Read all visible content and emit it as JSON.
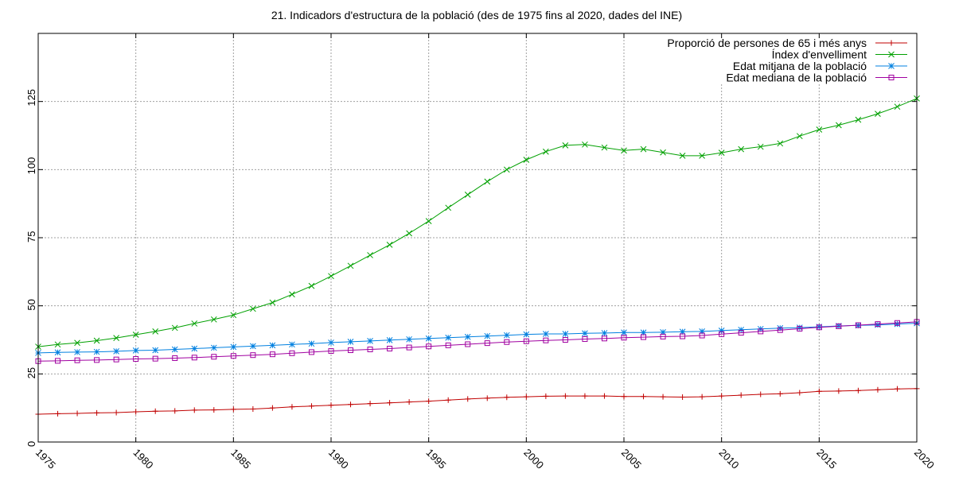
{
  "chart_data": {
    "type": "line",
    "title": "21. Indicadors d'estructura de la població (des de 1975 fins al 2020, dades del INE)",
    "xlabel": "",
    "ylabel": "",
    "xlim": [
      1975,
      2020
    ],
    "ylim": [
      0,
      150
    ],
    "x_ticks": [
      1975,
      1980,
      1985,
      1990,
      1995,
      2000,
      2005,
      2010,
      2015,
      2020
    ],
    "y_ticks": [
      0,
      25,
      50,
      75,
      100,
      125
    ],
    "grid": true,
    "legend_position": "top-right",
    "x": [
      1975,
      1976,
      1977,
      1978,
      1979,
      1980,
      1981,
      1982,
      1983,
      1984,
      1985,
      1986,
      1987,
      1988,
      1989,
      1990,
      1991,
      1992,
      1993,
      1994,
      1995,
      1996,
      1997,
      1998,
      1999,
      2000,
      2001,
      2002,
      2003,
      2004,
      2005,
      2006,
      2007,
      2008,
      2009,
      2010,
      2011,
      2012,
      2013,
      2014,
      2015,
      2016,
      2017,
      2018,
      2019,
      2020
    ],
    "series": [
      {
        "name": "Proporció de persones de 65 i més anys",
        "color": "#c00000",
        "marker": "plus",
        "values": [
          10.2,
          10.4,
          10.5,
          10.7,
          10.8,
          11.1,
          11.3,
          11.4,
          11.7,
          11.8,
          12.0,
          12.1,
          12.5,
          12.9,
          13.2,
          13.5,
          13.8,
          14.1,
          14.4,
          14.7,
          15.0,
          15.4,
          15.8,
          16.1,
          16.4,
          16.6,
          16.8,
          16.9,
          16.9,
          16.9,
          16.7,
          16.7,
          16.6,
          16.5,
          16.6,
          16.9,
          17.2,
          17.5,
          17.7,
          18.1,
          18.6,
          18.7,
          18.9,
          19.2,
          19.5,
          19.6
        ]
      },
      {
        "name": "Índex d'envelliment",
        "color": "#00a000",
        "marker": "x",
        "values": [
          35.0,
          35.8,
          36.4,
          37.2,
          38.2,
          39.4,
          40.6,
          41.9,
          43.5,
          45.0,
          46.6,
          48.9,
          51.2,
          54.2,
          57.3,
          60.9,
          64.7,
          68.6,
          72.4,
          76.6,
          81.1,
          86.0,
          90.8,
          95.6,
          100.0,
          103.6,
          106.6,
          108.9,
          109.2,
          108.1,
          107.0,
          107.5,
          106.3,
          105.1,
          105.1,
          106.2,
          107.5,
          108.4,
          109.6,
          112.3,
          114.7,
          116.3,
          118.3,
          120.5,
          123.1,
          126.1
        ]
      },
      {
        "name": "Edat mitjana de la població",
        "color": "#0080e0",
        "marker": "star",
        "values": [
          32.7,
          32.9,
          33.0,
          33.1,
          33.3,
          33.6,
          33.7,
          34.0,
          34.3,
          34.6,
          34.9,
          35.2,
          35.5,
          35.8,
          36.1,
          36.5,
          36.8,
          37.1,
          37.4,
          37.7,
          38.0,
          38.3,
          38.6,
          38.9,
          39.2,
          39.5,
          39.7,
          39.7,
          39.9,
          40.0,
          40.2,
          40.2,
          40.3,
          40.5,
          40.6,
          40.9,
          41.2,
          41.5,
          41.8,
          42.0,
          42.3,
          42.6,
          42.8,
          43.0,
          43.3,
          43.6
        ]
      },
      {
        "name": "Edat mediana de la població",
        "color": "#a000a0",
        "marker": "square",
        "values": [
          29.7,
          29.8,
          30.0,
          30.1,
          30.3,
          30.5,
          30.6,
          30.8,
          31.0,
          31.3,
          31.6,
          31.9,
          32.2,
          32.6,
          33.0,
          33.4,
          33.7,
          34.0,
          34.3,
          34.7,
          35.1,
          35.5,
          35.9,
          36.3,
          36.7,
          37.0,
          37.3,
          37.5,
          37.8,
          38.0,
          38.3,
          38.5,
          38.7,
          38.8,
          39.1,
          39.6,
          40.1,
          40.6,
          41.1,
          41.6,
          42.1,
          42.5,
          42.9,
          43.3,
          43.7,
          44.1
        ]
      }
    ]
  }
}
